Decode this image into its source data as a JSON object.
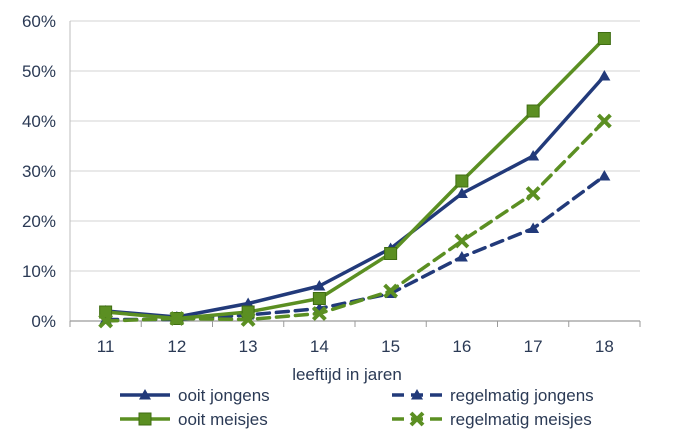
{
  "chart_data": {
    "type": "line",
    "title": "",
    "xlabel": "leeftijd in jaren",
    "ylabel": "",
    "x": [
      11,
      12,
      13,
      14,
      15,
      16,
      17,
      18
    ],
    "x_tick_labels": [
      "11",
      "12",
      "13",
      "14",
      "15",
      "16",
      "17",
      "18"
    ],
    "ylim": [
      0,
      60
    ],
    "y_ticks": [
      0,
      10,
      20,
      30,
      40,
      50,
      60
    ],
    "y_tick_labels": [
      "0%",
      "10%",
      "20%",
      "30%",
      "40%",
      "50%",
      "60%"
    ],
    "grid": "horizontal",
    "legend_position": "bottom",
    "series": [
      {
        "name": "ooit jongens",
        "color": "#223a7a",
        "dash": "solid",
        "marker": "triangle",
        "values": [
          2.0,
          0.8,
          3.5,
          7.0,
          14.5,
          25.5,
          33.0,
          49.0
        ]
      },
      {
        "name": "regelmatig jongens",
        "color": "#223a7a",
        "dash": "dashed",
        "marker": "triangle",
        "values": [
          0.3,
          0.3,
          1.2,
          2.5,
          5.5,
          12.8,
          18.5,
          29.0
        ]
      },
      {
        "name": "ooit meisjes",
        "color": "#5b8f22",
        "dash": "solid",
        "marker": "square",
        "values": [
          1.8,
          0.5,
          1.8,
          4.5,
          13.5,
          28.0,
          42.0,
          56.5
        ]
      },
      {
        "name": "regelmatig meisjes",
        "color": "#5b8f22",
        "dash": "dashed",
        "marker": "x",
        "values": [
          0.0,
          0.5,
          0.3,
          1.5,
          6.0,
          16.0,
          25.5,
          40.0
        ]
      }
    ]
  }
}
